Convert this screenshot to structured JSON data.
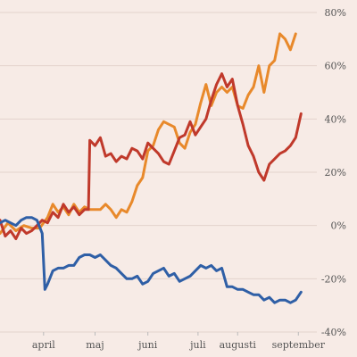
{
  "chart_data": {
    "type": "line",
    "title": "",
    "xlabel": "",
    "ylabel": "",
    "y_unit": "%",
    "ylim": [
      -40,
      80
    ],
    "y_ticks": [
      80,
      60,
      40,
      20,
      0,
      -20,
      -40
    ],
    "y_tick_labels": [
      "80%",
      "60%",
      "40%",
      "20%",
      "0%",
      "-20%",
      "-40%"
    ],
    "x_tick_labels": [
      "april",
      "maj",
      "juni",
      "juli",
      "augusti",
      "september"
    ],
    "x_tick_positions": [
      0.165,
      0.36,
      0.56,
      0.75,
      0.9,
      1.13
    ],
    "x_range": [
      0,
      1.2
    ],
    "grid": "horizontal",
    "y_axis_side": "right",
    "series": [
      {
        "color": "#e8892b",
        "points": [
          [
            0,
            -3
          ],
          [
            0.03,
            1
          ],
          [
            0.06,
            -2
          ],
          [
            0.09,
            0
          ],
          [
            0.12,
            -1
          ],
          [
            0.15,
            -1
          ],
          [
            0.18,
            3
          ],
          [
            0.2,
            8
          ],
          [
            0.22,
            5
          ],
          [
            0.24,
            7
          ],
          [
            0.26,
            4
          ],
          [
            0.28,
            8
          ],
          [
            0.3,
            5
          ],
          [
            0.32,
            7
          ],
          [
            0.34,
            6
          ],
          [
            0.36,
            6
          ],
          [
            0.38,
            6
          ],
          [
            0.4,
            8
          ],
          [
            0.42,
            6
          ],
          [
            0.44,
            3
          ],
          [
            0.46,
            6
          ],
          [
            0.48,
            5
          ],
          [
            0.5,
            9
          ],
          [
            0.52,
            15
          ],
          [
            0.54,
            18
          ],
          [
            0.56,
            28
          ],
          [
            0.58,
            30
          ],
          [
            0.6,
            36
          ],
          [
            0.62,
            39
          ],
          [
            0.64,
            38
          ],
          [
            0.66,
            37
          ],
          [
            0.68,
            31
          ],
          [
            0.7,
            29
          ],
          [
            0.72,
            35
          ],
          [
            0.74,
            38
          ],
          [
            0.76,
            46
          ],
          [
            0.78,
            53
          ],
          [
            0.8,
            45
          ],
          [
            0.82,
            50
          ],
          [
            0.84,
            52
          ],
          [
            0.86,
            50
          ],
          [
            0.88,
            52
          ],
          [
            0.9,
            45
          ],
          [
            0.92,
            44
          ],
          [
            0.94,
            49
          ],
          [
            0.96,
            52
          ],
          [
            0.98,
            60
          ],
          [
            1.0,
            50
          ],
          [
            1.02,
            60
          ],
          [
            1.04,
            62
          ],
          [
            1.06,
            72
          ],
          [
            1.08,
            70
          ],
          [
            1.1,
            66
          ],
          [
            1.12,
            72
          ]
        ]
      },
      {
        "color": "#c0392b",
        "points": [
          [
            0,
            2
          ],
          [
            0.02,
            -4
          ],
          [
            0.04,
            -2
          ],
          [
            0.06,
            -5
          ],
          [
            0.08,
            -1
          ],
          [
            0.1,
            -3
          ],
          [
            0.12,
            -2
          ],
          [
            0.14,
            0
          ],
          [
            0.16,
            2
          ],
          [
            0.18,
            1
          ],
          [
            0.2,
            5
          ],
          [
            0.22,
            3
          ],
          [
            0.24,
            8
          ],
          [
            0.26,
            5
          ],
          [
            0.28,
            7
          ],
          [
            0.3,
            4
          ],
          [
            0.32,
            6
          ],
          [
            0.335,
            6
          ],
          [
            0.34,
            32
          ],
          [
            0.36,
            30
          ],
          [
            0.38,
            33
          ],
          [
            0.4,
            26
          ],
          [
            0.42,
            27
          ],
          [
            0.44,
            24
          ],
          [
            0.46,
            26
          ],
          [
            0.48,
            25
          ],
          [
            0.5,
            29
          ],
          [
            0.52,
            28
          ],
          [
            0.54,
            25
          ],
          [
            0.56,
            31
          ],
          [
            0.58,
            29
          ],
          [
            0.6,
            27
          ],
          [
            0.62,
            24
          ],
          [
            0.64,
            23
          ],
          [
            0.66,
            28
          ],
          [
            0.68,
            33
          ],
          [
            0.7,
            34
          ],
          [
            0.72,
            39
          ],
          [
            0.74,
            34
          ],
          [
            0.76,
            37
          ],
          [
            0.78,
            40
          ],
          [
            0.8,
            47
          ],
          [
            0.82,
            53
          ],
          [
            0.84,
            57
          ],
          [
            0.86,
            52
          ],
          [
            0.88,
            55
          ],
          [
            0.9,
            45
          ],
          [
            0.92,
            38
          ],
          [
            0.94,
            30
          ],
          [
            0.96,
            26
          ],
          [
            0.98,
            20
          ],
          [
            1.0,
            17
          ],
          [
            1.02,
            23
          ],
          [
            1.04,
            25
          ],
          [
            1.06,
            27
          ],
          [
            1.08,
            28
          ],
          [
            1.1,
            30
          ],
          [
            1.12,
            33
          ],
          [
            1.14,
            42
          ]
        ]
      },
      {
        "color": "#2f5fa6",
        "points": [
          [
            0,
            1
          ],
          [
            0.02,
            2
          ],
          [
            0.04,
            1
          ],
          [
            0.06,
            0
          ],
          [
            0.08,
            2
          ],
          [
            0.1,
            3
          ],
          [
            0.12,
            3
          ],
          [
            0.14,
            2
          ],
          [
            0.16,
            -3
          ],
          [
            0.17,
            -24
          ],
          [
            0.18,
            -22
          ],
          [
            0.2,
            -17
          ],
          [
            0.22,
            -16
          ],
          [
            0.24,
            -16
          ],
          [
            0.26,
            -15
          ],
          [
            0.28,
            -15
          ],
          [
            0.3,
            -12
          ],
          [
            0.32,
            -11
          ],
          [
            0.34,
            -11
          ],
          [
            0.36,
            -12
          ],
          [
            0.38,
            -11
          ],
          [
            0.4,
            -13
          ],
          [
            0.42,
            -15
          ],
          [
            0.44,
            -16
          ],
          [
            0.46,
            -18
          ],
          [
            0.48,
            -20
          ],
          [
            0.5,
            -20
          ],
          [
            0.52,
            -19
          ],
          [
            0.54,
            -22
          ],
          [
            0.56,
            -21
          ],
          [
            0.58,
            -18
          ],
          [
            0.6,
            -17
          ],
          [
            0.62,
            -16
          ],
          [
            0.64,
            -19
          ],
          [
            0.66,
            -18
          ],
          [
            0.68,
            -21
          ],
          [
            0.7,
            -20
          ],
          [
            0.72,
            -19
          ],
          [
            0.74,
            -17
          ],
          [
            0.76,
            -15
          ],
          [
            0.78,
            -16
          ],
          [
            0.8,
            -15
          ],
          [
            0.82,
            -17
          ],
          [
            0.84,
            -16
          ],
          [
            0.86,
            -23
          ],
          [
            0.88,
            -23
          ],
          [
            0.9,
            -24
          ],
          [
            0.92,
            -24
          ],
          [
            0.94,
            -25
          ],
          [
            0.96,
            -26
          ],
          [
            0.98,
            -26
          ],
          [
            1.0,
            -28
          ],
          [
            1.02,
            -27
          ],
          [
            1.04,
            -29
          ],
          [
            1.06,
            -28
          ],
          [
            1.08,
            -28
          ],
          [
            1.1,
            -29
          ],
          [
            1.12,
            -28
          ],
          [
            1.14,
            -25
          ]
        ]
      }
    ]
  }
}
